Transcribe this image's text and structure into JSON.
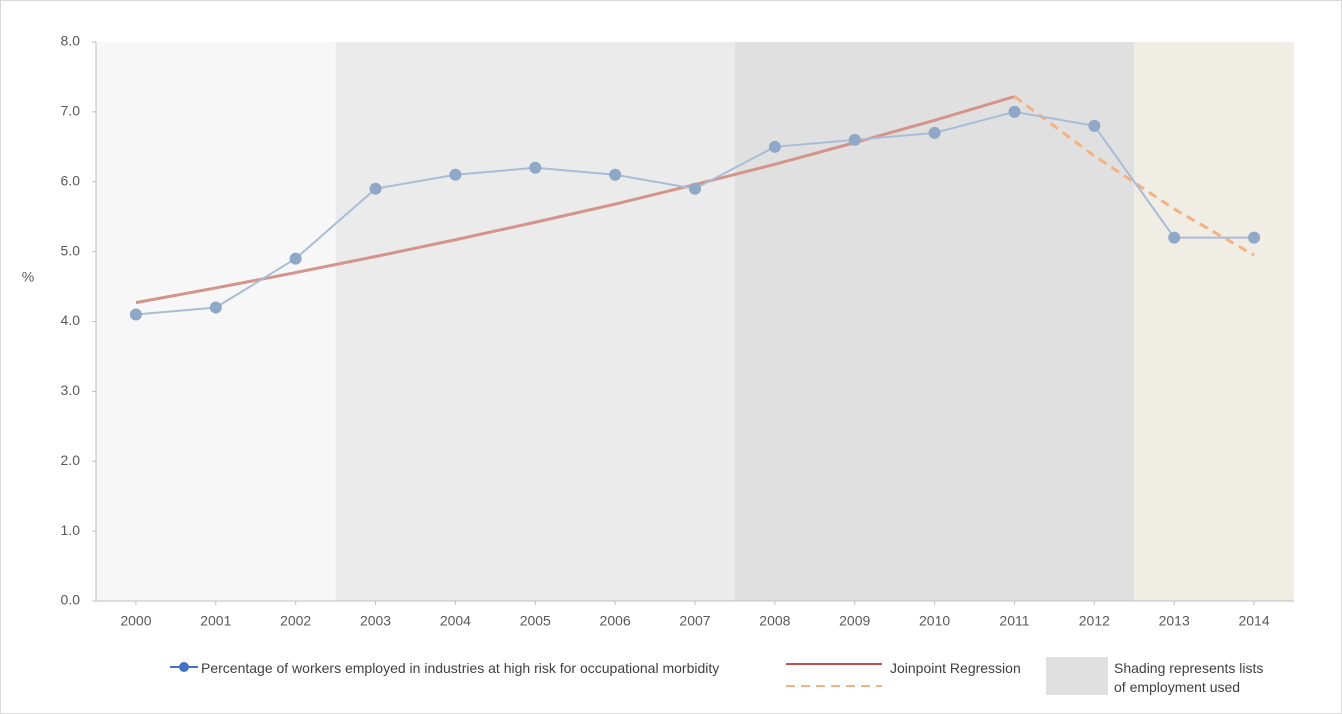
{
  "chart_data": {
    "type": "line",
    "y_label": "%",
    "x": [
      2000,
      2001,
      2002,
      2003,
      2004,
      2005,
      2006,
      2007,
      2008,
      2009,
      2010,
      2011,
      2012,
      2013,
      2014
    ],
    "xlim": [
      1999.5,
      2014.5
    ],
    "xticks": [
      2000,
      2001,
      2002,
      2003,
      2004,
      2005,
      2006,
      2007,
      2008,
      2009,
      2010,
      2011,
      2012,
      2013,
      2014
    ],
    "ylim": [
      0,
      8
    ],
    "yticks": [
      {
        "value": 0,
        "label": "0.0"
      },
      {
        "value": 1,
        "label": "1.0"
      },
      {
        "value": 2,
        "label": "2.0"
      },
      {
        "value": 3,
        "label": "3.0"
      },
      {
        "value": 4,
        "label": "4.0"
      },
      {
        "value": 5,
        "label": "5.0"
      },
      {
        "value": 6,
        "label": "6.0"
      },
      {
        "value": 7,
        "label": "7.0"
      },
      {
        "value": 8,
        "label": "8.0"
      }
    ],
    "shading": [
      {
        "x": [
          1999.5,
          2002.5
        ],
        "color": "#f7f7f7"
      },
      {
        "x": [
          2002.5,
          2007.5
        ],
        "color": "#ebebeb"
      },
      {
        "x": [
          2007.5,
          2012.5
        ],
        "color": "#e0e0e0"
      },
      {
        "x": [
          2012.5,
          2014.5
        ],
        "color": "#f0ede5"
      }
    ],
    "shading_label": "Shading represents lists of employment used",
    "shading_legend_color": "#e0e0e0",
    "series": [
      {
        "name": "Percentage of workers employed in industries at high risk for occupational morbidity",
        "color": "#a9bdd8",
        "marker_color": "#8fa8c8",
        "legend_color": "#4472c4",
        "markers": true,
        "values": [
          4.1,
          4.2,
          4.9,
          5.9,
          6.1,
          6.2,
          6.1,
          5.9,
          6.5,
          6.6,
          6.7,
          7.0,
          6.8,
          5.2,
          5.2
        ]
      },
      {
        "name": "Joinpoint Regression",
        "color": "#d4948c",
        "legend_color": "#c0504d",
        "dash": false,
        "values": [
          4.27,
          4.48,
          4.7,
          4.93,
          5.17,
          5.42,
          5.68,
          5.96,
          6.25,
          6.56,
          6.88,
          7.22,
          null,
          null,
          null
        ]
      },
      {
        "color": "#f4b183",
        "dash": true,
        "values": [
          null,
          null,
          null,
          null,
          null,
          null,
          null,
          null,
          null,
          null,
          null,
          7.22,
          6.37,
          5.61,
          4.95
        ]
      }
    ]
  }
}
